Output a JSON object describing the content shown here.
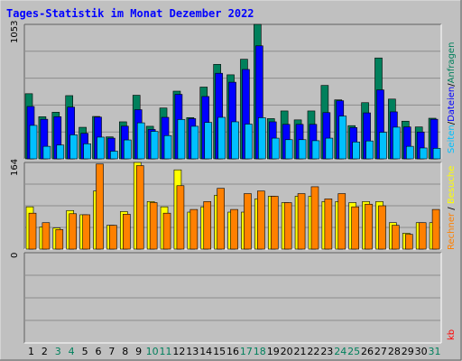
{
  "chart_data": [
    {
      "type": "bar",
      "title": "Tages-Statistik im Monat Dezember 2022",
      "categories": [
        "1",
        "2",
        "3",
        "4",
        "5",
        "6",
        "7",
        "8",
        "9",
        "10",
        "11",
        "12",
        "13",
        "14",
        "15",
        "16",
        "17",
        "18",
        "19",
        "20",
        "21",
        "22",
        "23",
        "24",
        "25",
        "26",
        "27",
        "28",
        "29",
        "30",
        "31"
      ],
      "weekend_days": [
        "3",
        "4",
        "10",
        "11",
        "17",
        "18",
        "24",
        "25",
        "31"
      ],
      "ylabel_max": "1053",
      "ylim": [
        0,
        1053
      ],
      "grid": true,
      "series": [
        {
          "name": "Anfragen",
          "color": "#00805c",
          "values": [
            510,
            330,
            365,
            495,
            247,
            332,
            172,
            290,
            498,
            255,
            398,
            530,
            323,
            562,
            740,
            658,
            780,
            1053,
            315,
            375,
            305,
            375,
            575,
            462,
            260,
            440,
            790,
            468,
            295,
            250,
            318
          ]
        },
        {
          "name": "Dateien",
          "color": "#0000ff",
          "values": [
            410,
            310,
            330,
            405,
            200,
            327,
            162,
            256,
            385,
            230,
            325,
            505,
            315,
            488,
            670,
            600,
            700,
            885,
            290,
            270,
            270,
            270,
            362,
            455,
            245,
            360,
            540,
            368,
            250,
            210,
            310
          ]
        },
        {
          "name": "Seiten",
          "color": "#00c0ff",
          "values": [
            262,
            98,
            108,
            188,
            118,
            170,
            60,
            148,
            282,
            215,
            182,
            308,
            255,
            285,
            325,
            290,
            272,
            322,
            162,
            150,
            150,
            142,
            162,
            335,
            132,
            140,
            208,
            248,
            98,
            85,
            82
          ]
        }
      ]
    },
    {
      "type": "bar",
      "ylabel_max": "164",
      "ylim": [
        0,
        164
      ],
      "grid": true,
      "series": [
        {
          "name": "Besuche",
          "color": "#ffff00",
          "values": [
            80,
            42,
            40,
            73,
            65,
            110,
            45,
            71,
            164,
            90,
            80,
            150,
            70,
            80,
            102,
            70,
            70,
            95,
            100,
            88,
            100,
            100,
            90,
            90,
            88,
            90,
            90,
            50,
            30,
            50,
            50
          ]
        },
        {
          "name": "Rechner",
          "color": "#ff8000",
          "values": [
            68,
            50,
            37,
            67,
            65,
            161,
            45,
            66,
            158,
            88,
            68,
            120,
            75,
            90,
            115,
            75,
            105,
            110,
            100,
            88,
            105,
            118,
            95,
            105,
            80,
            85,
            82,
            45,
            28,
            50,
            75
          ]
        }
      ]
    },
    {
      "type": "bar",
      "ylabel_max": "0",
      "series": [
        {
          "name": "kb",
          "color": "#ff0000",
          "values": []
        }
      ]
    }
  ],
  "legend": {
    "panel1": {
      "anfragen": "Anfragen",
      "sep1": "/",
      "dateien": "Dateien",
      "sep2": "/",
      "seiten": "Seiten"
    },
    "panel2": {
      "besuche": "Besuche",
      "sep": "/",
      "rechner": "Rechner"
    },
    "panel3": {
      "kb": "kb"
    }
  },
  "colors": {
    "background": "#c0c0c0",
    "title": "#0000ff",
    "weekday": "#000000",
    "weekend": "#00805c"
  }
}
